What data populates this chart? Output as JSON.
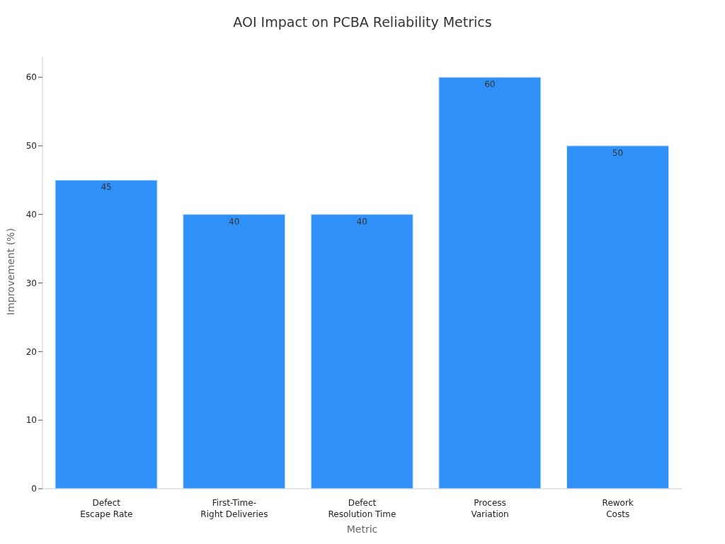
{
  "chart_data": {
    "type": "bar",
    "title": "AOI Impact on PCBA Reliability Metrics",
    "xlabel": "Metric",
    "ylabel": "Improvement (%)",
    "categories": [
      "Defect\nEscape Rate",
      "First-Time-\nRight Deliveries",
      "Defect\nResolution Time",
      "Process\nVariation",
      "Rework\nCosts"
    ],
    "values": [
      45,
      40,
      40,
      60,
      50
    ],
    "color": "#2f91f7",
    "ylim": [
      0,
      63
    ],
    "yticks": [
      0,
      10,
      20,
      30,
      40,
      50,
      60
    ],
    "grid": false,
    "data_labels": true
  }
}
